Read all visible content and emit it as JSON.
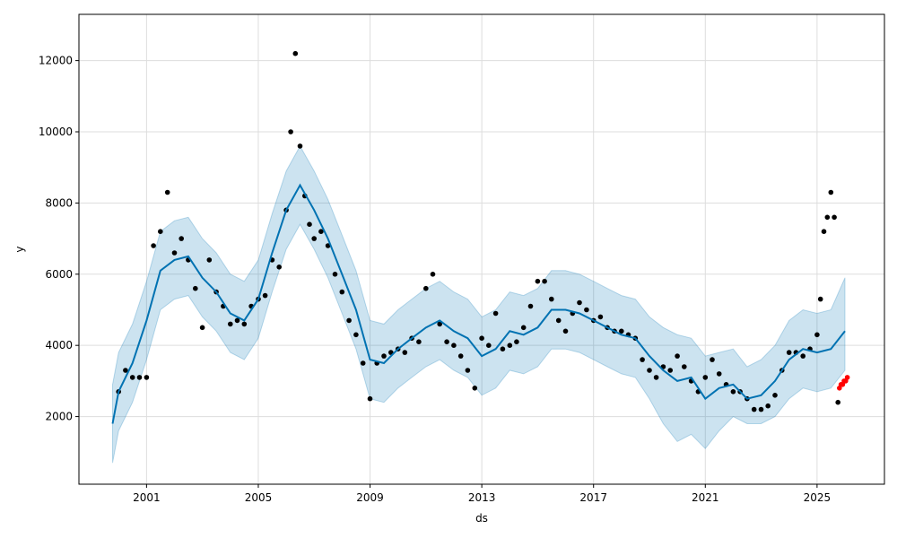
{
  "chart_data": {
    "type": "line",
    "title": "",
    "xlabel": "ds",
    "ylabel": "y",
    "xlim": [
      "1998-08-01",
      "2027-06-01"
    ],
    "ylim": [
      100,
      13300
    ],
    "x_ticks": [
      "2001",
      "2005",
      "2009",
      "2013",
      "2017",
      "2021",
      "2025"
    ],
    "y_ticks": [
      2000,
      4000,
      6000,
      8000,
      10000,
      12000
    ],
    "grid": true,
    "legend": "none",
    "colors": {
      "observed": "#000000",
      "forecast": "#0072B2",
      "uncertainty": "#0072B2",
      "test": "#ff0000"
    },
    "series": [
      {
        "role": "observed",
        "style": "points",
        "x": [
          "2000-01-01",
          "2000-04-01",
          "2000-07-01",
          "2000-10-01",
          "2001-01-01",
          "2001-04-01",
          "2001-07-01",
          "2001-10-01",
          "2002-01-01",
          "2002-04-01",
          "2002-07-01",
          "2002-10-01",
          "2003-01-01",
          "2003-04-01",
          "2003-07-01",
          "2003-10-01",
          "2004-01-01",
          "2004-04-01",
          "2004-07-01",
          "2004-10-01",
          "2005-01-01",
          "2005-04-01",
          "2005-07-01",
          "2005-10-01",
          "2006-01-01",
          "2006-03-01",
          "2006-05-01",
          "2006-07-01",
          "2006-09-01",
          "2006-11-01",
          "2007-01-01",
          "2007-04-01",
          "2007-07-01",
          "2007-10-01",
          "2008-01-01",
          "2008-04-01",
          "2008-07-01",
          "2008-10-01",
          "2009-01-01",
          "2009-04-01",
          "2009-07-01",
          "2009-10-01",
          "2010-01-01",
          "2010-04-01",
          "2010-07-01",
          "2010-10-01",
          "2011-01-01",
          "2011-04-01",
          "2011-07-01",
          "2011-10-01",
          "2012-01-01",
          "2012-04-01",
          "2012-07-01",
          "2012-10-01",
          "2013-01-01",
          "2013-04-01",
          "2013-07-01",
          "2013-10-01",
          "2014-01-01",
          "2014-04-01",
          "2014-07-01",
          "2014-10-01",
          "2015-01-01",
          "2015-04-01",
          "2015-07-01",
          "2015-10-01",
          "2016-01-01",
          "2016-04-01",
          "2016-07-01",
          "2016-10-01",
          "2017-01-01",
          "2017-04-01",
          "2017-07-01",
          "2017-10-01",
          "2018-01-01",
          "2018-04-01",
          "2018-07-01",
          "2018-10-01",
          "2019-01-01",
          "2019-04-01",
          "2019-07-01",
          "2019-10-01",
          "2020-01-01",
          "2020-04-01",
          "2020-07-01",
          "2020-10-01",
          "2021-01-01",
          "2021-04-01",
          "2021-07-01",
          "2021-10-01",
          "2022-01-01",
          "2022-04-01",
          "2022-07-01",
          "2022-10-01",
          "2023-01-01",
          "2023-04-01",
          "2023-07-01",
          "2023-10-01",
          "2024-01-01",
          "2024-04-01",
          "2024-07-01",
          "2024-10-01",
          "2025-01-01",
          "2025-02-15",
          "2025-04-01",
          "2025-05-15",
          "2025-07-01",
          "2025-08-15",
          "2025-10-01"
        ],
        "y": [
          2700,
          3300,
          3100,
          3100,
          3100,
          6800,
          7200,
          8300,
          6600,
          7000,
          6400,
          5600,
          4500,
          6400,
          5500,
          5100,
          4600,
          4700,
          4600,
          5100,
          5300,
          5400,
          6400,
          6200,
          7800,
          10000,
          12200,
          9600,
          8200,
          7400,
          7000,
          7200,
          6800,
          6000,
          5500,
          4700,
          4300,
          3500,
          2500,
          3500,
          3700,
          3800,
          3900,
          3800,
          4200,
          4100,
          5600,
          6000,
          4600,
          4100,
          4000,
          3700,
          3300,
          2800,
          4200,
          4000,
          4900,
          3900,
          4000,
          4100,
          4500,
          5100,
          5800,
          5800,
          5300,
          4700,
          4400,
          4900,
          5200,
          5000,
          4700,
          4800,
          4500,
          4400,
          4400,
          4300,
          4200,
          3600,
          3300,
          3100,
          3400,
          3300,
          3700,
          3400,
          3000,
          2700,
          3100,
          3600,
          3200,
          2900,
          2700,
          2700,
          2500,
          2200,
          2200,
          2300,
          2600,
          3300,
          3800,
          3800,
          3700,
          3900,
          4300,
          5300,
          7200,
          7600,
          8300,
          7600,
          2400
        ]
      },
      {
        "role": "forecast",
        "style": "line",
        "x": [
          "1999-10-15",
          "2000-01-01",
          "2000-07-01",
          "2001-01-01",
          "2001-07-01",
          "2002-01-01",
          "2002-07-01",
          "2003-01-01",
          "2003-07-01",
          "2004-01-01",
          "2004-07-01",
          "2005-01-01",
          "2005-07-01",
          "2006-01-01",
          "2006-07-01",
          "2007-01-01",
          "2007-07-01",
          "2008-01-01",
          "2008-07-01",
          "2009-01-01",
          "2009-07-01",
          "2010-01-01",
          "2010-07-01",
          "2011-01-01",
          "2011-07-01",
          "2012-01-01",
          "2012-07-01",
          "2013-01-01",
          "2013-07-01",
          "2014-01-01",
          "2014-07-01",
          "2015-01-01",
          "2015-07-01",
          "2016-01-01",
          "2016-07-01",
          "2017-01-01",
          "2017-07-01",
          "2018-01-01",
          "2018-07-01",
          "2019-01-01",
          "2019-07-01",
          "2020-01-01",
          "2020-07-01",
          "2021-01-01",
          "2021-07-01",
          "2022-01-01",
          "2022-07-01",
          "2023-01-01",
          "2023-07-01",
          "2024-01-01",
          "2024-07-01",
          "2025-01-01",
          "2025-07-01",
          "2026-01-01"
        ],
        "y": [
          1800,
          2700,
          3500,
          4700,
          6100,
          6400,
          6500,
          5900,
          5500,
          4900,
          4700,
          5300,
          6600,
          7800,
          8500,
          7800,
          7000,
          6000,
          5000,
          3600,
          3500,
          3900,
          4200,
          4500,
          4700,
          4400,
          4200,
          3700,
          3900,
          4400,
          4300,
          4500,
          5000,
          5000,
          4900,
          4700,
          4500,
          4300,
          4200,
          3700,
          3300,
          3000,
          3100,
          2500,
          2800,
          2900,
          2500,
          2600,
          3000,
          3600,
          3900,
          3800,
          3900,
          4400
        ]
      },
      {
        "role": "uncertainty",
        "style": "band",
        "x": [
          "1999-10-15",
          "2000-01-01",
          "2000-07-01",
          "2001-01-01",
          "2001-07-01",
          "2002-01-01",
          "2002-07-01",
          "2003-01-01",
          "2003-07-01",
          "2004-01-01",
          "2004-07-01",
          "2005-01-01",
          "2005-07-01",
          "2006-01-01",
          "2006-07-01",
          "2007-01-01",
          "2007-07-01",
          "2008-01-01",
          "2008-07-01",
          "2009-01-01",
          "2009-07-01",
          "2010-01-01",
          "2010-07-01",
          "2011-01-01",
          "2011-07-01",
          "2012-01-01",
          "2012-07-01",
          "2013-01-01",
          "2013-07-01",
          "2014-01-01",
          "2014-07-01",
          "2015-01-01",
          "2015-07-01",
          "2016-01-01",
          "2016-07-01",
          "2017-01-01",
          "2017-07-01",
          "2018-01-01",
          "2018-07-01",
          "2019-01-01",
          "2019-07-01",
          "2020-01-01",
          "2020-07-01",
          "2021-01-01",
          "2021-07-01",
          "2022-01-01",
          "2022-07-01",
          "2023-01-01",
          "2023-07-01",
          "2024-01-01",
          "2024-07-01",
          "2025-01-01",
          "2025-07-01",
          "2026-01-01"
        ],
        "lower": [
          700,
          1600,
          2400,
          3600,
          5000,
          5300,
          5400,
          4800,
          4400,
          3800,
          3600,
          4200,
          5500,
          6700,
          7400,
          6700,
          5900,
          4900,
          3900,
          2500,
          2400,
          2800,
          3100,
          3400,
          3600,
          3300,
          3100,
          2600,
          2800,
          3300,
          3200,
          3400,
          3900,
          3900,
          3800,
          3600,
          3400,
          3200,
          3100,
          2500,
          1800,
          1300,
          1500,
          1100,
          1600,
          2000,
          1800,
          1800,
          2000,
          2500,
          2800,
          2700,
          2800,
          3300
        ],
        "upper": [
          2900,
          3800,
          4600,
          5800,
          7200,
          7500,
          7600,
          7000,
          6600,
          6000,
          5800,
          6400,
          7700,
          8900,
          9600,
          8900,
          8100,
          7100,
          6100,
          4700,
          4600,
          5000,
          5300,
          5600,
          5800,
          5500,
          5300,
          4800,
          5000,
          5500,
          5400,
          5600,
          6100,
          6100,
          6000,
          5800,
          5600,
          5400,
          5300,
          4800,
          4500,
          4300,
          4200,
          3700,
          3800,
          3900,
          3400,
          3600,
          4000,
          4700,
          5000,
          4900,
          5000,
          5900
        ]
      },
      {
        "role": "test",
        "style": "points",
        "x": [
          "2025-10-20",
          "2025-11-10",
          "2025-12-01",
          "2025-12-20",
          "2026-01-10",
          "2026-02-01"
        ],
        "y": [
          2800,
          2900,
          2900,
          3000,
          3000,
          3100
        ]
      }
    ]
  }
}
